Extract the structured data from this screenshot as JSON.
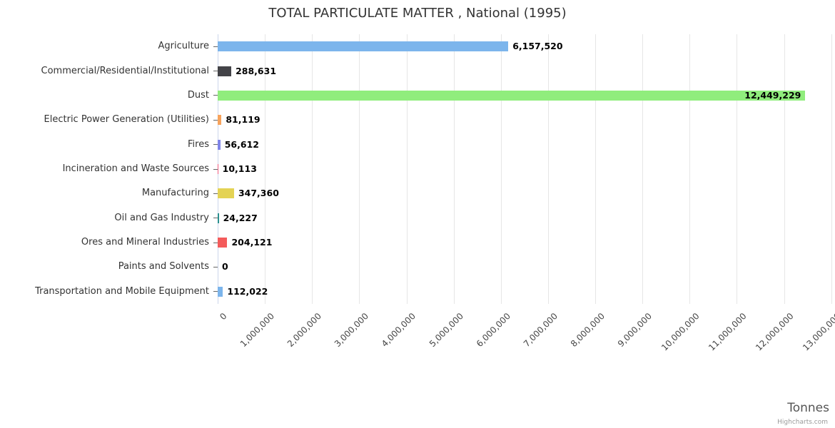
{
  "title": "TOTAL PARTICULATE MATTER , National (1995)",
  "credits": "Highcharts.com",
  "chart_data": {
    "type": "bar",
    "orientation": "horizontal",
    "title": "TOTAL PARTICULATE MATTER , National (1995)",
    "categories": [
      "Agriculture",
      "Commercial/Residential/Institutional",
      "Dust",
      "Electric Power Generation (Utilities)",
      "Fires",
      "Incineration and Waste Sources",
      "Manufacturing",
      "Oil and Gas Industry",
      "Ores and Mineral Industries",
      "Paints and Solvents",
      "Transportation and Mobile Equipment"
    ],
    "values": [
      6157520,
      288631,
      12449229,
      81119,
      56612,
      10113,
      347360,
      24227,
      204121,
      0,
      112022
    ],
    "value_labels": [
      "6,157,520",
      "288,631",
      "12,449,229",
      "81,119",
      "56,612",
      "10,113",
      "347,360",
      "24,227",
      "204,121",
      "0",
      "112,022"
    ],
    "colors": [
      "#7cb5ec",
      "#434348",
      "#90ed7d",
      "#f7a35c",
      "#8085e9",
      "#f15c80",
      "#e4d354",
      "#2b908f",
      "#f45b5b",
      "#91e8e1",
      "#7cb5ec"
    ],
    "xlabel": "Tonnes",
    "ylabel": "",
    "axis_min": 0,
    "axis_max": 13050000,
    "tick_interval": 1000000,
    "tick_labels": [
      "0",
      "1,000,000",
      "2,000,000",
      "3,000,000",
      "4,000,000",
      "5,000,000",
      "6,000,000",
      "7,000,000",
      "8,000,000",
      "9,000,000",
      "10,000,000",
      "11,000,000",
      "12,000,000",
      "13,000,000"
    ],
    "grid": true,
    "legend": false
  },
  "style": {
    "grid_color": "#e6e6e6",
    "axis_line_color": "#ccd6eb",
    "category_tick_color": "#666666"
  }
}
